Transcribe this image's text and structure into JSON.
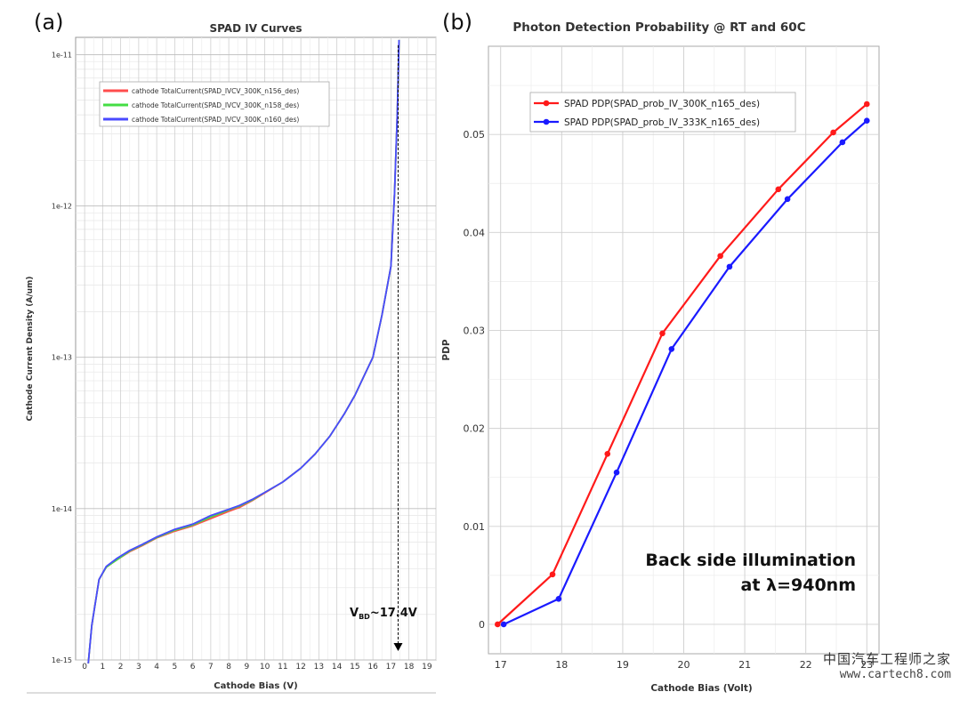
{
  "panel_labels": [
    "(a)",
    "(b)"
  ],
  "chart_data": [
    {
      "type": "line",
      "title": "SPAD IV Curves",
      "xlabel": "Cathode Bias (V)",
      "ylabel": "Cathode Current Density (A/um)",
      "yscale": "log",
      "xlim": [
        -0.5,
        19.5
      ],
      "ylim": [
        1e-15,
        1.3e-11
      ],
      "xticks": [
        "0",
        "1",
        "2",
        "3",
        "4",
        "5",
        "6",
        "7",
        "8",
        "9",
        "10",
        "11",
        "12",
        "13",
        "14",
        "15",
        "16",
        "17",
        "18",
        "19"
      ],
      "yticks": [
        {
          "value": 1e-15,
          "label": "1e-15"
        },
        {
          "value": 1e-14,
          "label": "1e-14"
        },
        {
          "value": 1e-13,
          "label": "1e-13"
        },
        {
          "value": 1e-12,
          "label": "1e-12"
        },
        {
          "value": 1e-11,
          "label": "1e-11"
        }
      ],
      "grid": true,
      "legend_position": "top-left",
      "series": [
        {
          "name": "cathode TotalCurrent(SPAD_IVCV_300K_n156_des)",
          "color": "#ff4d4d",
          "x": [
            0.2,
            0.4,
            0.8,
            1.2,
            1.8,
            2.5,
            3.2,
            4.0,
            5.0,
            6.0,
            7.0,
            8.0,
            8.6,
            9.3,
            10.0,
            11.0,
            12.0,
            12.8,
            13.6,
            14.4,
            15.0,
            15.5,
            16.0,
            16.5,
            17.0,
            17.2,
            17.35,
            17.45
          ],
          "y": [
            9.5e-16,
            1.7e-15,
            3.4e-15,
            4.1e-15,
            4.6e-15,
            5.2e-15,
            5.7e-15,
            6.4e-15,
            7.1e-15,
            7.7e-15,
            8.6e-15,
            9.6e-15,
            1.02e-14,
            1.13e-14,
            1.27e-14,
            1.5e-14,
            1.85e-14,
            2.3e-14,
            3e-14,
            4.2e-14,
            5.6e-14,
            7.5e-14,
            1e-13,
            1.9e-13,
            4e-13,
            1.2e-12,
            4e-12,
            1.25e-11
          ]
        },
        {
          "name": "cathode TotalCurrent(SPAD_IVCV_300K_n158_des)",
          "color": "#44dd44",
          "x": [
            0.2,
            0.4,
            0.8,
            1.2,
            1.8,
            2.5,
            3.2,
            4.0,
            5.0,
            6.0,
            7.0,
            8.0,
            8.6,
            9.3,
            10.0,
            11.0,
            12.0,
            12.8,
            13.6,
            14.4,
            15.0,
            15.5,
            16.0,
            16.5,
            17.0,
            17.2,
            17.35,
            17.45
          ],
          "y": [
            9.5e-16,
            1.7e-15,
            3.4e-15,
            4.1e-15,
            4.6e-15,
            5.25e-15,
            5.75e-15,
            6.45e-15,
            7.2e-15,
            7.8e-15,
            8.8e-15,
            9.8e-15,
            1.04e-14,
            1.14e-14,
            1.28e-14,
            1.5e-14,
            1.85e-14,
            2.3e-14,
            3e-14,
            4.2e-14,
            5.6e-14,
            7.5e-14,
            1e-13,
            1.9e-13,
            4e-13,
            1.2e-12,
            4e-12,
            1.25e-11
          ]
        },
        {
          "name": "cathode TotalCurrent(SPAD_IVCV_300K_n160_des)",
          "color": "#4a4aff",
          "x": [
            0.2,
            0.4,
            0.8,
            1.2,
            1.8,
            2.5,
            3.2,
            4.0,
            5.0,
            6.0,
            7.0,
            8.0,
            8.6,
            9.3,
            10.0,
            11.0,
            12.0,
            12.8,
            13.6,
            14.4,
            15.0,
            15.5,
            16.0,
            16.5,
            17.0,
            17.2,
            17.35,
            17.45
          ],
          "y": [
            9.5e-16,
            1.7e-15,
            3.4e-15,
            4.15e-15,
            4.7e-15,
            5.3e-15,
            5.8e-15,
            6.5e-15,
            7.3e-15,
            7.9e-15,
            9e-15,
            9.9e-15,
            1.05e-14,
            1.15e-14,
            1.28e-14,
            1.5e-14,
            1.85e-14,
            2.3e-14,
            3e-14,
            4.2e-14,
            5.6e-14,
            7.5e-14,
            1e-13,
            1.9e-13,
            4e-13,
            1.2e-12,
            4e-12,
            1.25e-11
          ]
        }
      ],
      "annotation": {
        "text_main": "V",
        "text_sub": "BD",
        "text_value": "~17.4V",
        "x": 17.4
      }
    },
    {
      "type": "line",
      "title": "Photon Detection Probability @ RT and 60C",
      "xlabel": "Cathode Bias (Volt)",
      "ylabel": "PDP",
      "xlim": [
        16.8,
        23.2
      ],
      "ylim": [
        -0.003,
        0.059
      ],
      "xticks": [
        17,
        18,
        19,
        20,
        21,
        22,
        23
      ],
      "yticks": [
        0,
        0.01,
        0.02,
        0.03,
        0.04,
        0.05
      ],
      "ytick_labels": [
        "0",
        "0.01",
        "0.02",
        "0.03",
        "0.04",
        "0.05"
      ],
      "grid": true,
      "legend_position": "top-left",
      "series": [
        {
          "name": "SPAD PDP(SPAD_prob_IV_300K_n165_des)",
          "color": "#ff1a1a",
          "x": [
            16.95,
            17.85,
            18.75,
            19.65,
            20.6,
            21.55,
            22.45,
            23.0
          ],
          "y": [
            0.0,
            0.0051,
            0.0174,
            0.0297,
            0.0376,
            0.0444,
            0.0502,
            0.0531
          ]
        },
        {
          "name": "SPAD PDP(SPAD_prob_IV_333K_n165_des)",
          "color": "#1a1aff",
          "x": [
            17.05,
            17.95,
            18.9,
            19.8,
            20.75,
            21.7,
            22.6,
            23.0
          ],
          "y": [
            0.0,
            0.0026,
            0.0155,
            0.0281,
            0.0365,
            0.0434,
            0.0492,
            0.0514
          ]
        }
      ],
      "annotation_lines": [
        "Back side illumination",
        "at λ=940nm"
      ]
    }
  ],
  "watermark": {
    "text": "中国汽车工程师之家",
    "url": "www.cartech8.com"
  }
}
